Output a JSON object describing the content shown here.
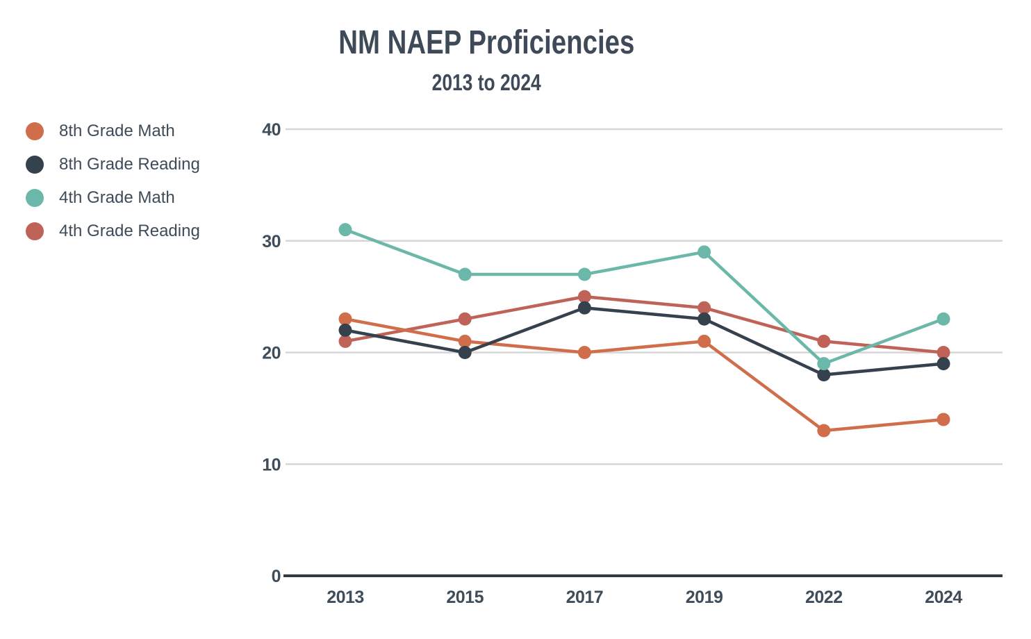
{
  "title": "NM NAEP Proficiencies",
  "subtitle": "2013 to 2024",
  "legend": {
    "items": [
      {
        "label": "8th Grade Math",
        "color": "#D06E4B"
      },
      {
        "label": "8th Grade Reading",
        "color": "#35414D"
      },
      {
        "label": "4th Grade Math",
        "color": "#6BB8AA"
      },
      {
        "label": "4th Grade Reading",
        "color": "#BF6358"
      }
    ]
  },
  "chart_data": {
    "type": "line",
    "title": "NM NAEP Proficiencies",
    "subtitle": "2013 to 2024",
    "categories": [
      "2013",
      "2015",
      "2017",
      "2019",
      "2022",
      "2024"
    ],
    "series": [
      {
        "name": "8th Grade Math",
        "color": "#D06E4B",
        "values": [
          23,
          21,
          20,
          21,
          13,
          14
        ]
      },
      {
        "name": "8th Grade Reading",
        "color": "#35414D",
        "values": [
          22,
          20,
          24,
          23,
          18,
          19
        ]
      },
      {
        "name": "4th Grade Math",
        "color": "#6BB8AA",
        "values": [
          31,
          27,
          27,
          29,
          19,
          23
        ]
      },
      {
        "name": "4th Grade Reading",
        "color": "#BF6358",
        "values": [
          21,
          23,
          25,
          24,
          21,
          20
        ]
      }
    ],
    "draw_order": [
      3,
      0,
      1,
      2
    ],
    "xlabel": "",
    "ylabel": "",
    "ylim": [
      0,
      40
    ],
    "yticks": [
      0,
      10,
      20,
      30,
      40
    ],
    "grid": "horizontal",
    "legend_position": "left",
    "colors": {
      "text": "#3E4A57",
      "tick_text": "#3F4D5A",
      "gridline": "#D6D6D6",
      "axis_line": "#333A40",
      "background": "#FFFFFF"
    }
  }
}
